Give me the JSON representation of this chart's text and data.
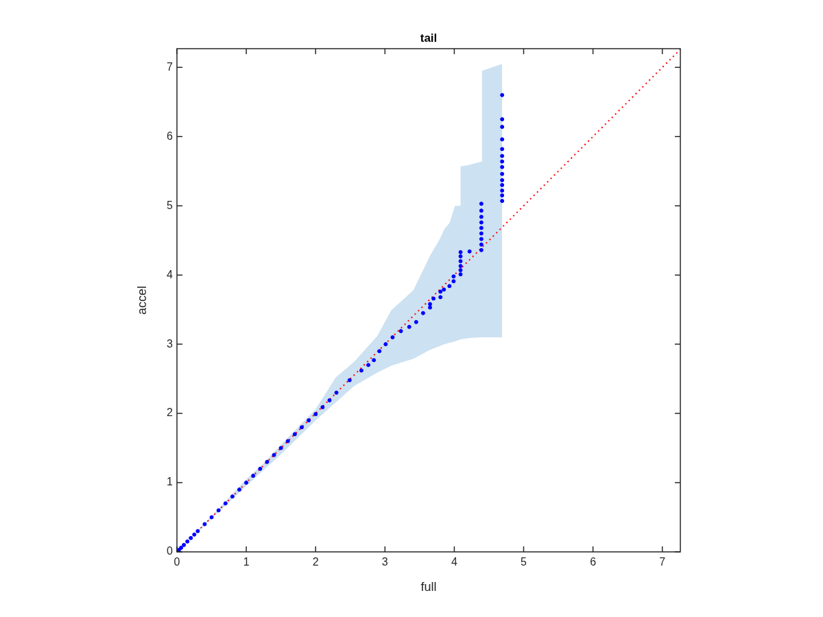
{
  "chart_data": {
    "type": "scatter",
    "title": "tail",
    "xlabel": "full",
    "ylabel": "accel",
    "xlim": [
      0,
      7.26
    ],
    "ylim": [
      0,
      7.27
    ],
    "xticks": [
      0,
      1,
      2,
      3,
      4,
      5,
      6,
      7
    ],
    "yticks": [
      0,
      1,
      2,
      3,
      4,
      5,
      6,
      7
    ],
    "grid": false,
    "legend": false,
    "series": [
      {
        "type": "line",
        "color": "#ff0000",
        "line_style": "dotted",
        "marker": "none",
        "x": [
          0,
          0.5,
          1,
          1.24,
          1.5,
          2,
          2.29,
          2.56,
          2.89,
          3.09,
          3.41,
          3.65,
          3.78,
          3.86,
          3.93,
          4.01,
          4.09,
          4.09,
          4.22,
          4.4,
          4.4,
          4.69,
          7.26
        ],
        "values": [
          0,
          0.5,
          1,
          1.24,
          1.5,
          2,
          2.29,
          2.56,
          2.89,
          3.09,
          3.41,
          3.65,
          3.78,
          3.86,
          3.93,
          4.01,
          4.09,
          4.09,
          4.22,
          4.4,
          4.4,
          4.69,
          7.26
        ],
        "upper": [
          0,
          0.52,
          1.05,
          1.27,
          1.55,
          2.06,
          2.52,
          2.75,
          3.12,
          3.49,
          3.78,
          4.28,
          4.5,
          4.67,
          4.75,
          5.0,
          5.0,
          5.57,
          5.59,
          5.64,
          6.95,
          7.05,
          null
        ],
        "lower": [
          0,
          0.48,
          0.95,
          1.17,
          1.41,
          1.9,
          2.16,
          2.4,
          2.59,
          2.69,
          2.79,
          2.92,
          2.97,
          3.0,
          3.02,
          3.04,
          3.07,
          3.07,
          3.09,
          3.1,
          3.1,
          3.1,
          null
        ]
      },
      {
        "color": "#0000ff",
        "marker": "circle",
        "x": [
          0,
          0.03,
          0.06,
          0.1,
          0.15,
          0.2,
          0.25,
          0.3,
          0.4,
          0.5,
          0.6,
          0.7,
          0.8,
          0.9,
          1.0,
          1.1,
          1.2,
          1.3,
          1.4,
          1.5,
          1.6,
          1.7,
          1.8,
          1.9,
          2.0,
          2.1,
          2.2,
          2.3,
          2.49,
          2.66,
          2.76,
          2.84,
          2.92,
          3.01,
          3.11,
          3.23,
          3.35,
          3.45,
          3.55,
          3.65,
          3.65,
          3.7,
          3.8,
          3.8,
          3.85,
          3.93,
          3.99,
          3.99,
          4.09,
          4.09,
          4.09,
          4.09,
          4.09,
          4.09,
          4.22,
          4.39,
          4.39,
          4.39,
          4.39,
          4.39,
          4.39,
          4.39,
          4.39,
          4.39,
          4.69,
          4.69,
          4.69,
          4.69,
          4.69,
          4.69,
          4.69,
          4.69,
          4.69,
          4.69,
          4.69,
          4.69,
          4.69,
          4.69
        ],
        "values": [
          0,
          0.03,
          0.06,
          0.1,
          0.15,
          0.2,
          0.25,
          0.3,
          0.4,
          0.5,
          0.6,
          0.7,
          0.8,
          0.9,
          1.0,
          1.1,
          1.2,
          1.3,
          1.4,
          1.5,
          1.6,
          1.7,
          1.8,
          1.9,
          1.99,
          2.09,
          2.19,
          2.3,
          2.48,
          2.62,
          2.7,
          2.77,
          2.9,
          3.0,
          3.1,
          3.19,
          3.25,
          3.32,
          3.45,
          3.53,
          3.58,
          3.66,
          3.68,
          3.76,
          3.79,
          3.84,
          3.91,
          3.98,
          4.01,
          4.07,
          4.13,
          4.2,
          4.27,
          4.33,
          4.34,
          4.36,
          4.44,
          4.52,
          4.6,
          4.68,
          4.76,
          4.84,
          4.93,
          5.03,
          5.07,
          5.15,
          5.22,
          5.3,
          5.37,
          5.46,
          5.56,
          5.64,
          5.72,
          5.82,
          5.96,
          6.14,
          6.25,
          6.6
        ]
      }
    ]
  }
}
